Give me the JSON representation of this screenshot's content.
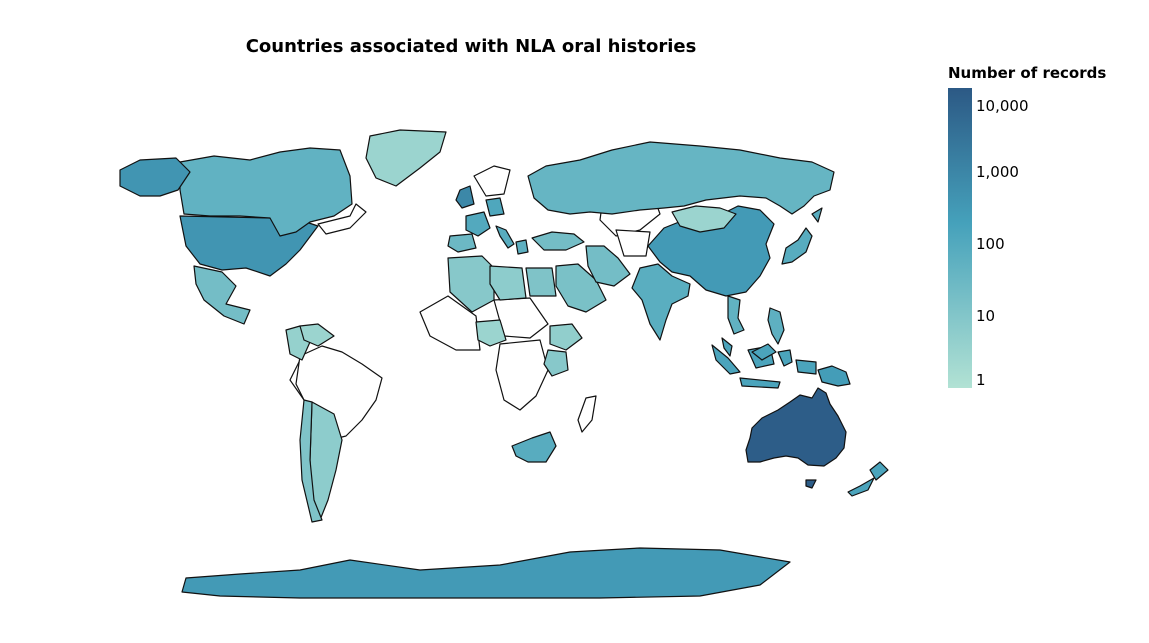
{
  "title": "Countries associated with NLA oral histories",
  "legend": {
    "title": "Number of records",
    "ticks": [
      {
        "label": "10,000",
        "value": 10000
      },
      {
        "label": "1,000",
        "value": 1000
      },
      {
        "label": "100",
        "value": 100
      },
      {
        "label": "10",
        "value": 10
      },
      {
        "label": "1",
        "value": 1
      }
    ],
    "scale": "log",
    "range": [
      1,
      15000
    ]
  },
  "colors": {
    "none": "#ffffff",
    "scale_low": "#b2e2d4",
    "scale_mid": "#45a1bb",
    "scale_high": "#2c5985",
    "outline": "#111111"
  },
  "map_data": {
    "projection": "equirectangular world",
    "countries": [
      {
        "name": "Australia",
        "records": 12000
      },
      {
        "name": "United Kingdom",
        "records": 900
      },
      {
        "name": "United States",
        "records": 400
      },
      {
        "name": "Antarctica",
        "records": 300
      },
      {
        "name": "China",
        "records": 300
      },
      {
        "name": "Papua New Guinea",
        "records": 250
      },
      {
        "name": "Indonesia",
        "records": 150
      },
      {
        "name": "South Africa",
        "records": 80
      },
      {
        "name": "Germany",
        "records": 120
      },
      {
        "name": "France",
        "records": 100
      },
      {
        "name": "Italy",
        "records": 80
      },
      {
        "name": "Japan",
        "records": 80
      },
      {
        "name": "New Zealand",
        "records": 150
      },
      {
        "name": "India",
        "records": 70
      },
      {
        "name": "Canada",
        "records": 50
      },
      {
        "name": "Russia",
        "records": 40
      },
      {
        "name": "Alaska (US)",
        "records": 400
      },
      {
        "name": "Vietnam",
        "records": 50
      },
      {
        "name": "Greece",
        "records": 60
      },
      {
        "name": "Mexico",
        "records": 20
      },
      {
        "name": "Brazil",
        "records": 0
      },
      {
        "name": "Argentina",
        "records": 6
      },
      {
        "name": "Chile",
        "records": 12
      },
      {
        "name": "Greenland",
        "records": 3
      },
      {
        "name": "Mongolia",
        "records": 3
      },
      {
        "name": "Egypt",
        "records": 12
      },
      {
        "name": "Nigeria",
        "records": 3
      },
      {
        "name": "Kenya",
        "records": 8
      },
      {
        "name": "Ethiopia",
        "records": 5
      },
      {
        "name": "Saudi Arabia",
        "records": 15
      },
      {
        "name": "Iran",
        "records": 20
      },
      {
        "name": "Turkey",
        "records": 20
      },
      {
        "name": "Spain",
        "records": 30
      },
      {
        "name": "Malaysia",
        "records": 150
      },
      {
        "name": "Philippines",
        "records": 60
      },
      {
        "name": "Colombia",
        "records": 4
      },
      {
        "name": "Venezuela",
        "records": 3
      },
      {
        "name": "Algeria",
        "records": 8
      },
      {
        "name": "Libya",
        "records": 6
      },
      {
        "name": "Madagascar",
        "records": 0
      }
    ]
  }
}
